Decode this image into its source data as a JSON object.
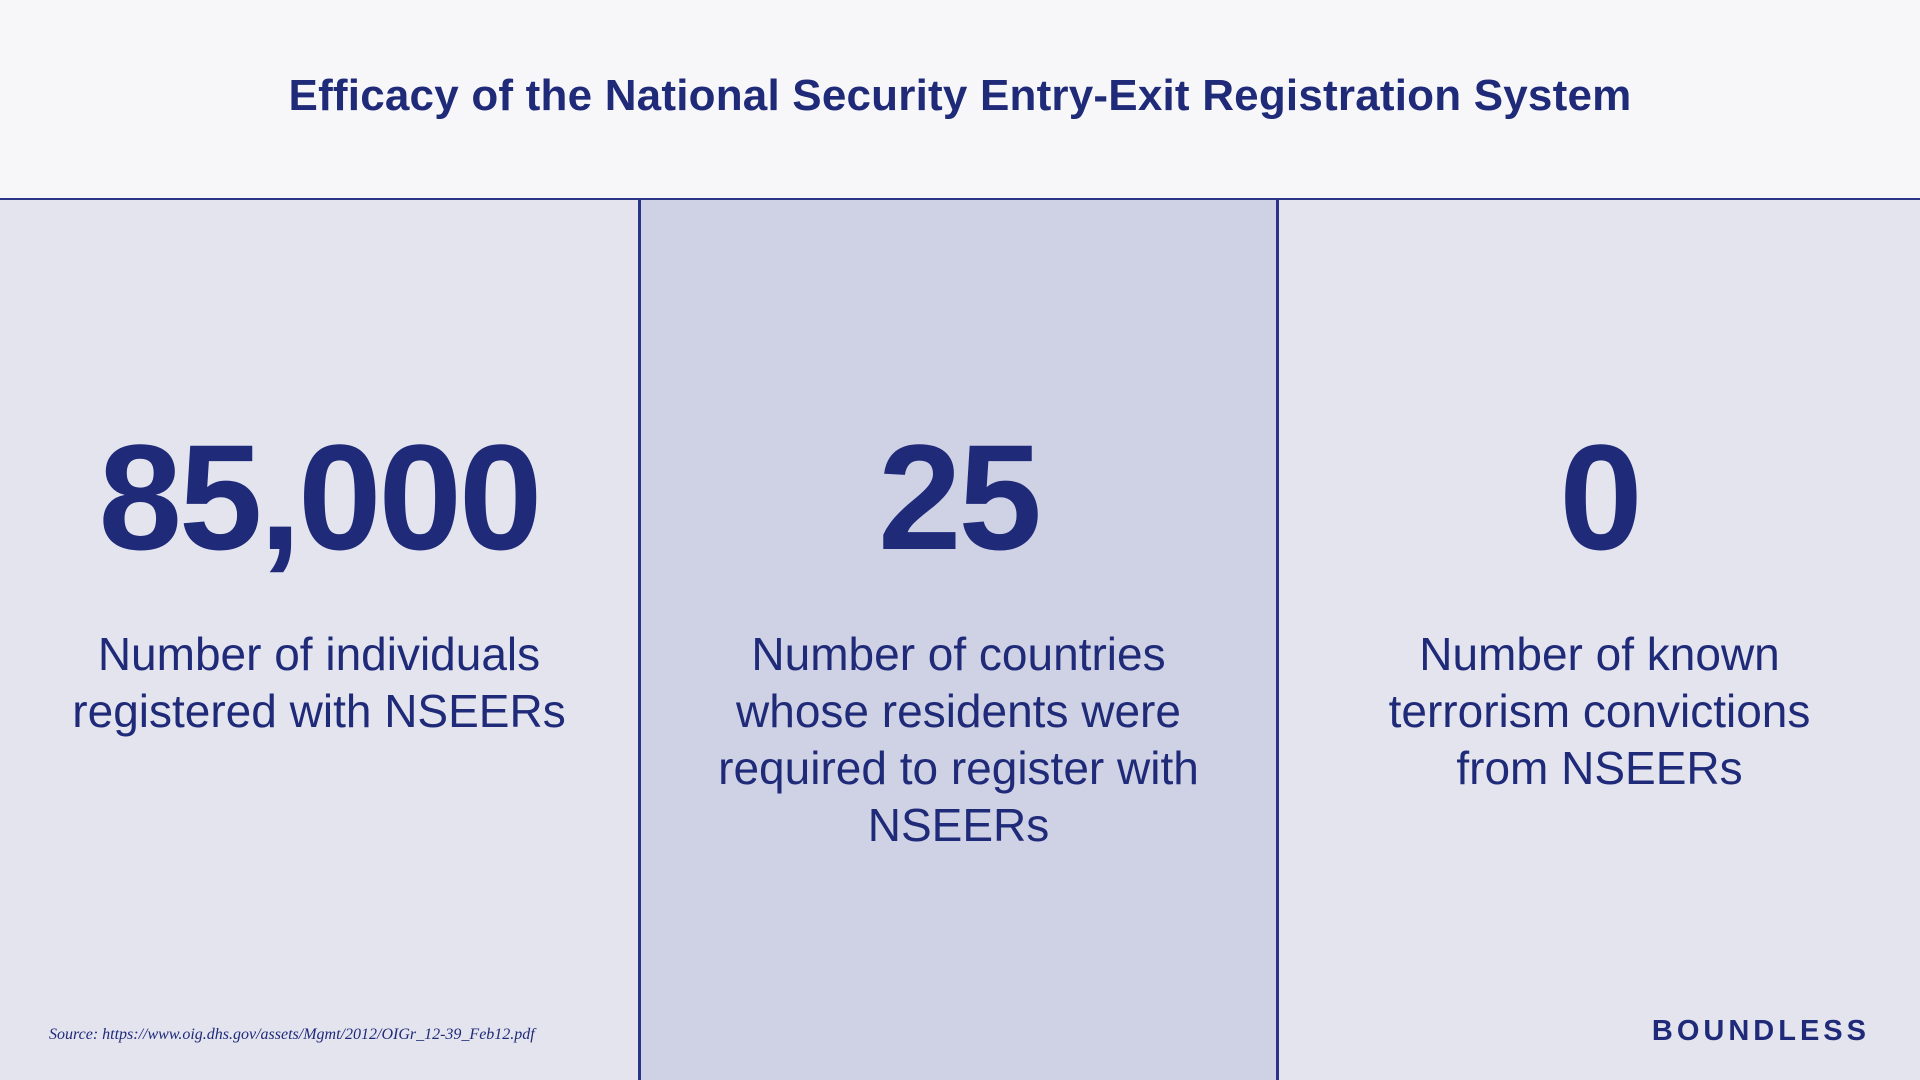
{
  "header": {
    "title": "Efficacy of the National Security Entry-Exit Registration System"
  },
  "stats": [
    {
      "value": "85,000",
      "description": "Number of individuals registered with NSEERs"
    },
    {
      "value": "25",
      "description": "Number of countries whose residents were required to register with NSEERs"
    },
    {
      "value": "0",
      "description": "Number of known terrorism convictions from NSEERs"
    }
  ],
  "footer": {
    "source": "Source: https://www.oig.dhs.gov/assets/Mgmt/2012/OIGr_12-39_Feb12.pdf",
    "brand": "BOUNDLESS"
  },
  "colors": {
    "primary": "#1f2a78",
    "header_bg": "#f7f7fa",
    "panel_bg": "#e4e4ef",
    "panel_highlight_bg": "#cfd1e4",
    "divider": "#2a3585"
  }
}
